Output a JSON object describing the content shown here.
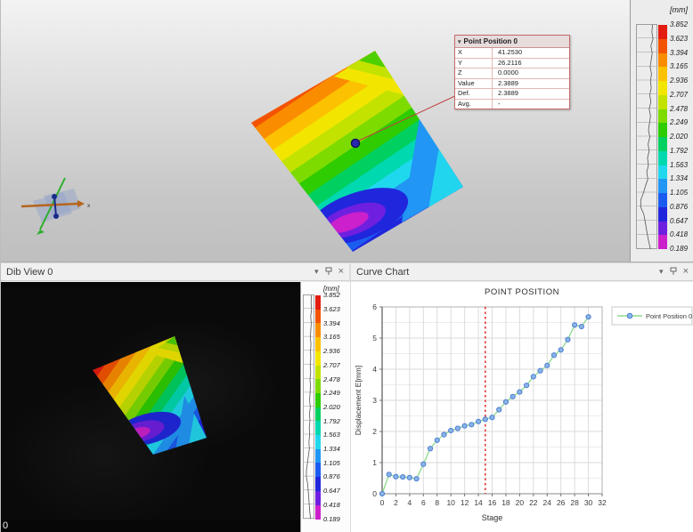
{
  "view3d": {
    "tooltip": {
      "title": "Point Position 0",
      "rows": [
        {
          "label": "X",
          "value": "41.2530"
        },
        {
          "label": "Y",
          "value": "26.2116"
        },
        {
          "label": "Z",
          "value": "0.0000"
        },
        {
          "label": "Value",
          "value": "2.3889"
        },
        {
          "label": "Def.",
          "value": "2.3889"
        },
        {
          "label": "Avg.",
          "value": "-"
        }
      ]
    },
    "triad_axis_label": "x"
  },
  "panels": {
    "dib_view": {
      "title": "Dib View 0",
      "stage_label": "0"
    },
    "curve_chart": {
      "title": "Curve Chart"
    }
  },
  "icons": {
    "caret": "▾",
    "close": "×"
  },
  "colorbar": {
    "unit": "[mm]",
    "ticks": [
      "3.852",
      "3.623",
      "3.394",
      "3.165",
      "2.936",
      "2.707",
      "2.478",
      "2.249",
      "2.020",
      "1.792",
      "1.563",
      "1.334",
      "1.105",
      "0.876",
      "0.647",
      "0.418",
      "0.189"
    ],
    "colors": [
      "#e41b10",
      "#f35300",
      "#fa8c00",
      "#fcc100",
      "#f2e600",
      "#c3e200",
      "#7edb00",
      "#2ecc00",
      "#00d060",
      "#00d8b0",
      "#20d8ee",
      "#2196f4",
      "#1b5cf0",
      "#2026dc",
      "#6e1fe0",
      "#cb20cb"
    ]
  },
  "chart_data": {
    "type": "line",
    "title": "POINT POSITION",
    "xlabel": "Stage",
    "ylabel": "Displacement E[mm]",
    "xlim": [
      0,
      32
    ],
    "ylim": [
      0,
      6
    ],
    "xtick_step": 2,
    "ytick_step": 1,
    "grid": true,
    "stage_cursor": {
      "x": 15,
      "color": "#e23333",
      "style": "dashed"
    },
    "legend": {
      "position": "top-right"
    },
    "series": [
      {
        "name": "Point Position 0",
        "line_color": "#8bdc8b",
        "marker_fill": "#8ab4e8",
        "marker_stroke": "#4f7fd0",
        "x": [
          0,
          1,
          2,
          3,
          4,
          5,
          6,
          7,
          8,
          9,
          10,
          11,
          12,
          13,
          14,
          15,
          16,
          17,
          18,
          19,
          20,
          21,
          22,
          23,
          24,
          25,
          26,
          27,
          28,
          29,
          30
        ],
        "values": [
          0.0,
          0.62,
          0.55,
          0.54,
          0.52,
          0.48,
          0.95,
          1.45,
          1.72,
          1.9,
          2.03,
          2.1,
          2.18,
          2.22,
          2.32,
          2.39,
          2.45,
          2.7,
          2.95,
          3.12,
          3.27,
          3.48,
          3.76,
          3.95,
          4.12,
          4.45,
          4.62,
          4.95,
          5.42,
          5.37,
          5.68
        ]
      }
    ]
  }
}
